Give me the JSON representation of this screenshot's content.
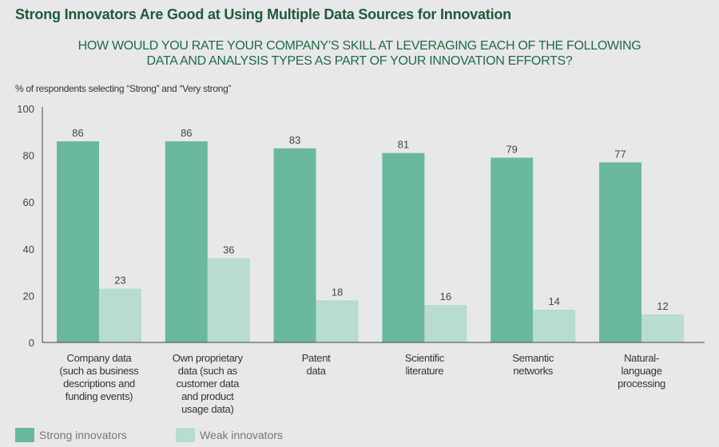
{
  "chart_data": {
    "type": "bar",
    "title": "Strong Innovators Are Good at Using Multiple Data Sources for Innovation",
    "subtitle": [
      "HOW WOULD YOU RATE YOUR COMPANY’S SKILL AT LEVERAGING EACH OF THE FOLLOWING",
      "DATA AND ANALYSIS TYPES AS PART OF YOUR INNOVATION EFFORTS?"
    ],
    "ylabel": "% of respondents selecting “Strong” and “Very strong”",
    "xlabel": "",
    "ylim": [
      0,
      100
    ],
    "yticks": [
      0,
      20,
      40,
      60,
      80,
      100
    ],
    "grid": false,
    "legend_position": "bottom-left",
    "categories": [
      [
        "Company data",
        "(such as business",
        "descriptions and",
        "funding events)"
      ],
      [
        "Own proprietary",
        "data (such as",
        "customer data",
        "and product",
        "usage data)"
      ],
      [
        "Patent",
        "data"
      ],
      [
        "Scientific",
        "literature"
      ],
      [
        "Semantic",
        "networks"
      ],
      [
        "Natural-",
        "language",
        "processing"
      ]
    ],
    "series": [
      {
        "name": "Strong innovators",
        "color": "#6bb8a0",
        "values": [
          86,
          86,
          83,
          81,
          79,
          77
        ]
      },
      {
        "name": "Weak innovators",
        "color": "#b8dccd",
        "values": [
          23,
          36,
          18,
          16,
          14,
          12
        ]
      }
    ]
  }
}
